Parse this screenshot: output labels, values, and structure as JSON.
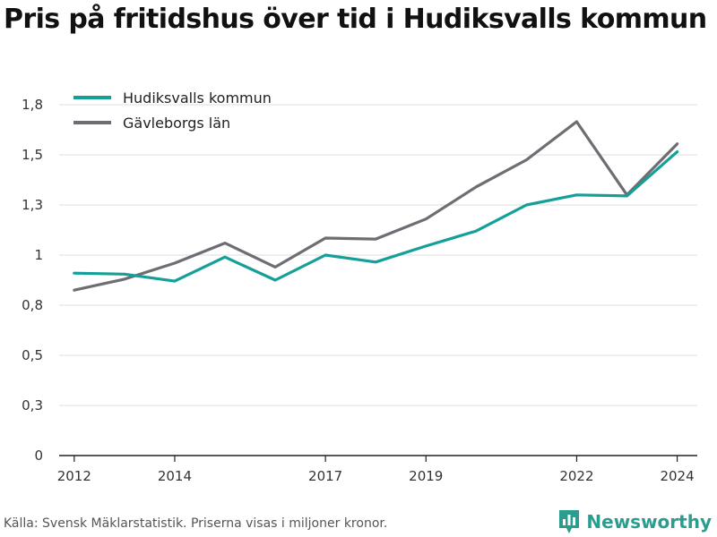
{
  "title": "Pris på fritidshus över tid i Hudiksvalls kommun",
  "footer": {
    "source": "Källa: Svensk Mäklarstatistik. Priserna visas i miljoner kronor.",
    "brand": "Newsworthy"
  },
  "chart_data": {
    "type": "line",
    "x": [
      2012,
      2013,
      2014,
      2015,
      2016,
      2017,
      2018,
      2019,
      2020,
      2021,
      2022,
      2023,
      2024
    ],
    "x_tick_values": [
      2012,
      2014,
      2017,
      2019,
      2022,
      2024
    ],
    "x_tick_labels": [
      "2012",
      "2014",
      "2017",
      "2019",
      "2022",
      "2024"
    ],
    "y_ticks": [
      0,
      0.25,
      0.5,
      0.75,
      1.0,
      1.25,
      1.5,
      1.75
    ],
    "y_tick_labels": [
      "0",
      "0,3",
      "0,5",
      "0,8",
      "1",
      "1,3",
      "1,5",
      "1,8"
    ],
    "ylim": [
      0,
      1.75
    ],
    "xlim": [
      2011.7,
      2024.4
    ],
    "grid": true,
    "legend_position": "top-left",
    "series": [
      {
        "name": "Hudiksvalls kommun",
        "color": "#14a098",
        "values": [
          0.91,
          0.905,
          0.87,
          0.99,
          0.875,
          1.0,
          0.965,
          1.045,
          1.12,
          1.25,
          1.3,
          1.295,
          1.515
        ]
      },
      {
        "name": "Gävleborgs län",
        "color": "#6d6d73",
        "values": [
          0.825,
          0.88,
          0.96,
          1.06,
          0.94,
          1.085,
          1.08,
          1.18,
          1.34,
          1.475,
          1.665,
          1.3,
          1.555
        ]
      }
    ]
  }
}
